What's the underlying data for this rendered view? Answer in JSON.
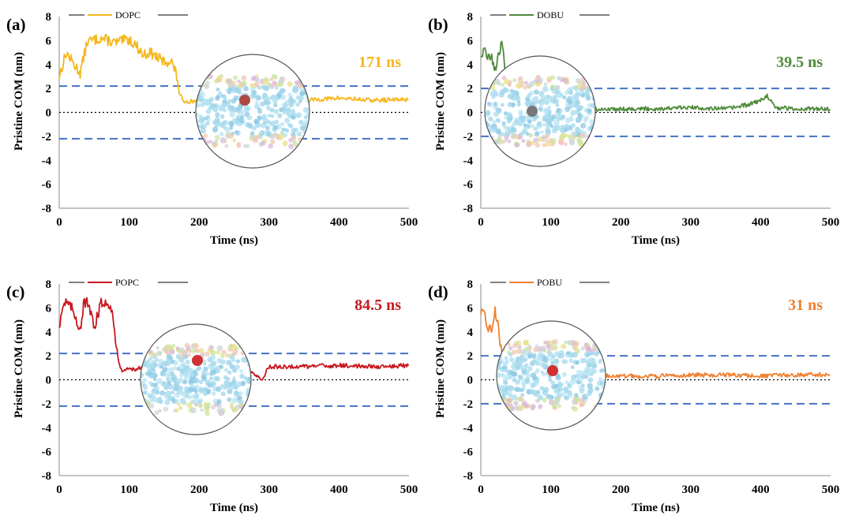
{
  "chart_data": [
    {
      "type": "line",
      "panel_label": "(a)",
      "legend": "DOPC",
      "color": "#F5B71C",
      "annotation": "171 ns",
      "xlabel": "Time (ns)",
      "ylabel": "Pristine COM (nm)",
      "xlim": [
        0,
        500
      ],
      "ylim": [
        -8,
        8
      ],
      "xticks": [
        "0",
        "100",
        "200",
        "300",
        "400",
        "500"
      ],
      "yticks": [
        "8",
        "6",
        "4",
        "2",
        "0",
        "-2",
        "-4",
        "-6",
        "-8"
      ],
      "boundaries": [
        2.2,
        -2.2
      ],
      "series": [
        {
          "x": [
            0,
            10,
            20,
            30,
            40,
            60,
            80,
            100,
            110,
            120,
            130,
            140,
            150,
            160,
            165,
            170,
            172,
            180,
            200,
            250,
            300,
            350,
            400,
            450,
            500
          ],
          "y": [
            3.0,
            5.0,
            4.1,
            3.3,
            5.9,
            6.2,
            5.8,
            6.1,
            5.6,
            4.8,
            5.0,
            4.6,
            4.2,
            4.3,
            3.6,
            2.5,
            1.4,
            0.9,
            1.0,
            1.1,
            1.3,
            1.0,
            1.2,
            1.0,
            1.1
          ]
        }
      ]
    },
    {
      "type": "line",
      "panel_label": "(b)",
      "legend": "DOBU",
      "color": "#4F8A3A",
      "annotation": "39.5 ns",
      "xlabel": "Time (ns)",
      "ylabel": "Pristine COM (nm)",
      "xlim": [
        0,
        500
      ],
      "ylim": [
        -8,
        8
      ],
      "xticks": [
        "0",
        "100",
        "200",
        "300",
        "400",
        "500"
      ],
      "yticks": [
        "8",
        "6",
        "4",
        "2",
        "0",
        "-2",
        "-4",
        "-6",
        "-8"
      ],
      "boundaries": [
        2.0,
        -2.0
      ],
      "series": [
        {
          "x": [
            0,
            5,
            10,
            15,
            20,
            25,
            30,
            35,
            38,
            40,
            45,
            50,
            100,
            150,
            200,
            250,
            300,
            350,
            380,
            400,
            410,
            420,
            450,
            500
          ],
          "y": [
            4.8,
            5.2,
            4.4,
            5.0,
            3.2,
            5.0,
            5.6,
            3.5,
            2.0,
            1.0,
            0.4,
            0.3,
            0.3,
            0.2,
            0.3,
            0.3,
            0.4,
            0.3,
            0.6,
            1.0,
            1.4,
            0.4,
            0.3,
            0.3
          ]
        }
      ]
    },
    {
      "type": "line",
      "panel_label": "(c)",
      "legend": "POPC",
      "color": "#C8181E",
      "annotation": "84.5 ns",
      "xlabel": "Time (ns)",
      "ylabel": "Pristine COM (nm)",
      "xlim": [
        0,
        500
      ],
      "ylim": [
        -8,
        8
      ],
      "xticks": [
        "0",
        "100",
        "200",
        "300",
        "400",
        "500"
      ],
      "yticks": [
        "8",
        "6",
        "4",
        "2",
        "0",
        "-2",
        "-4",
        "-6",
        "-8"
      ],
      "boundaries": [
        2.2,
        -2.2
      ],
      "series": [
        {
          "x": [
            0,
            5,
            10,
            20,
            30,
            35,
            40,
            50,
            60,
            70,
            75,
            80,
            85,
            90,
            100,
            150,
            200,
            250,
            280,
            290,
            300,
            350,
            400,
            450,
            500
          ],
          "y": [
            4.5,
            6.2,
            6.5,
            5.8,
            4.2,
            6.3,
            6.5,
            4.4,
            6.4,
            6.5,
            6.0,
            3.5,
            1.5,
            0.8,
            0.9,
            1.0,
            1.1,
            1.0,
            0.5,
            0.0,
            1.1,
            1.1,
            1.2,
            1.1,
            1.2
          ]
        }
      ]
    },
    {
      "type": "line",
      "panel_label": "(d)",
      "legend": "POBU",
      "color": "#F08030",
      "annotation": "31 ns",
      "xlabel": "Time (ns)",
      "ylabel": "Pristine COM (nm)",
      "xlim": [
        0,
        500
      ],
      "ylim": [
        -8,
        8
      ],
      "xticks": [
        "0",
        "100",
        "200",
        "300",
        "400",
        "500"
      ],
      "yticks": [
        "8",
        "6",
        "4",
        "2",
        "0",
        "-2",
        "-4",
        "-6",
        "-8"
      ],
      "boundaries": [
        2.0,
        -2.0
      ],
      "series": [
        {
          "x": [
            0,
            5,
            10,
            15,
            20,
            25,
            28,
            31,
            35,
            40,
            50,
            100,
            150,
            200,
            250,
            300,
            350,
            400,
            450,
            500
          ],
          "y": [
            5.6,
            5.3,
            4.5,
            4.0,
            5.8,
            4.6,
            3.0,
            2.0,
            0.8,
            0.3,
            0.3,
            0.3,
            0.4,
            0.3,
            0.3,
            0.4,
            0.4,
            0.3,
            0.4,
            0.4
          ]
        }
      ]
    }
  ]
}
